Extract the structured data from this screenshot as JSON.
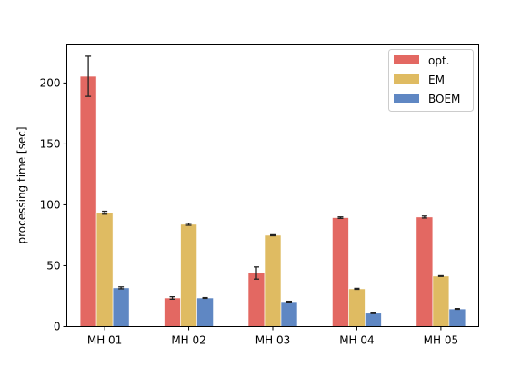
{
  "chart_data": {
    "type": "bar",
    "title": "",
    "xlabel": "",
    "ylabel": "processing time [sec]",
    "ylim": [
      0,
      232
    ],
    "yticks": [
      0,
      50,
      100,
      150,
      200
    ],
    "grid": false,
    "legend_position": "top-right",
    "categories": [
      "MH 01",
      "MH 02",
      "MH 03",
      "MH 04",
      "MH 05"
    ],
    "series": [
      {
        "name": "opt.",
        "color": "#e36862",
        "values": [
          205.5,
          23.5,
          44.0,
          89.5,
          90.0
        ],
        "errors": [
          16.5,
          1.0,
          5.0,
          0.6,
          0.8
        ]
      },
      {
        "name": "EM",
        "color": "#dfbb62",
        "values": [
          93.5,
          84.0,
          75.0,
          31.0,
          41.5
        ],
        "errors": [
          1.2,
          0.8,
          0.4,
          0.4,
          0.3
        ]
      },
      {
        "name": "BOEM",
        "color": "#5f87c3",
        "values": [
          31.8,
          23.5,
          20.5,
          11.0,
          14.5
        ],
        "errors": [
          0.8,
          0.3,
          0.3,
          0.3,
          0.3
        ]
      }
    ]
  }
}
